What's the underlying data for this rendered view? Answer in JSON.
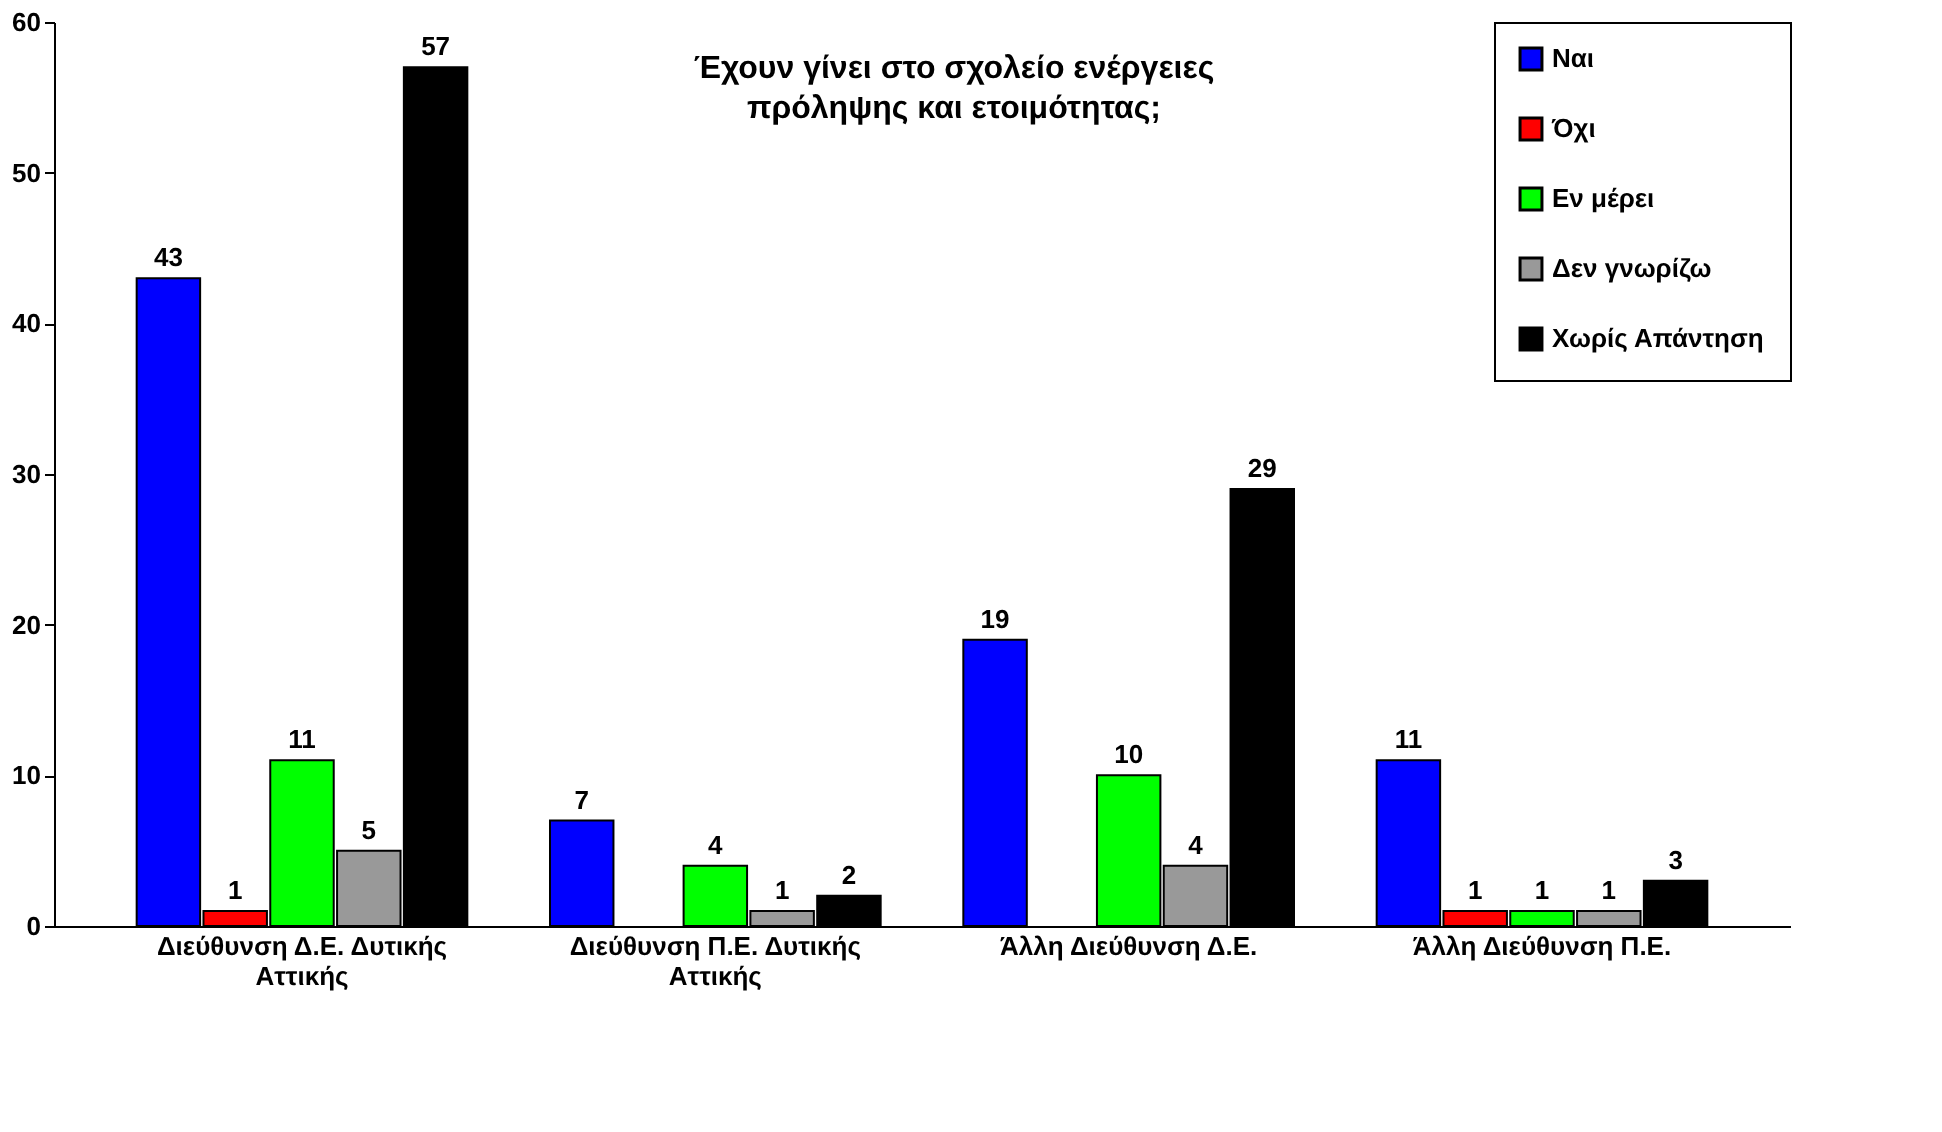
{
  "chart_data": {
    "type": "bar",
    "title": "Έχουν γίνει στο σχολείο ενέργειες πρόληψης και ετοιμότητας;",
    "categories": [
      "Διεύθυνση Δ.Ε. Δυτικής Αττικής",
      "Διεύθυνση Π.Ε. Δυτικής Αττικής",
      "Άλλη  Διεύθυνση Δ.Ε.",
      "Άλλη  Διεύθυνση Π.Ε."
    ],
    "series": [
      {
        "name": "Ναι",
        "color": "#0000ff",
        "values": [
          43,
          7,
          19,
          11
        ]
      },
      {
        "name": "Όχι",
        "color": "#ff0000",
        "values": [
          1,
          null,
          null,
          1
        ]
      },
      {
        "name": "Εν μέρει",
        "color": "#00ff00",
        "values": [
          11,
          4,
          10,
          1
        ]
      },
      {
        "name": "Δεν γνωρίζω",
        "color": "#999999",
        "values": [
          5,
          1,
          4,
          1
        ]
      },
      {
        "name": "Χωρίς Απάντηση",
        "color": "#000000",
        "values": [
          57,
          2,
          29,
          3
        ]
      }
    ],
    "ylim": [
      0,
      60
    ],
    "yticks": [
      0,
      10,
      20,
      30,
      40,
      50,
      60
    ],
    "grid": false,
    "legend": "top right",
    "data_labels": true
  }
}
